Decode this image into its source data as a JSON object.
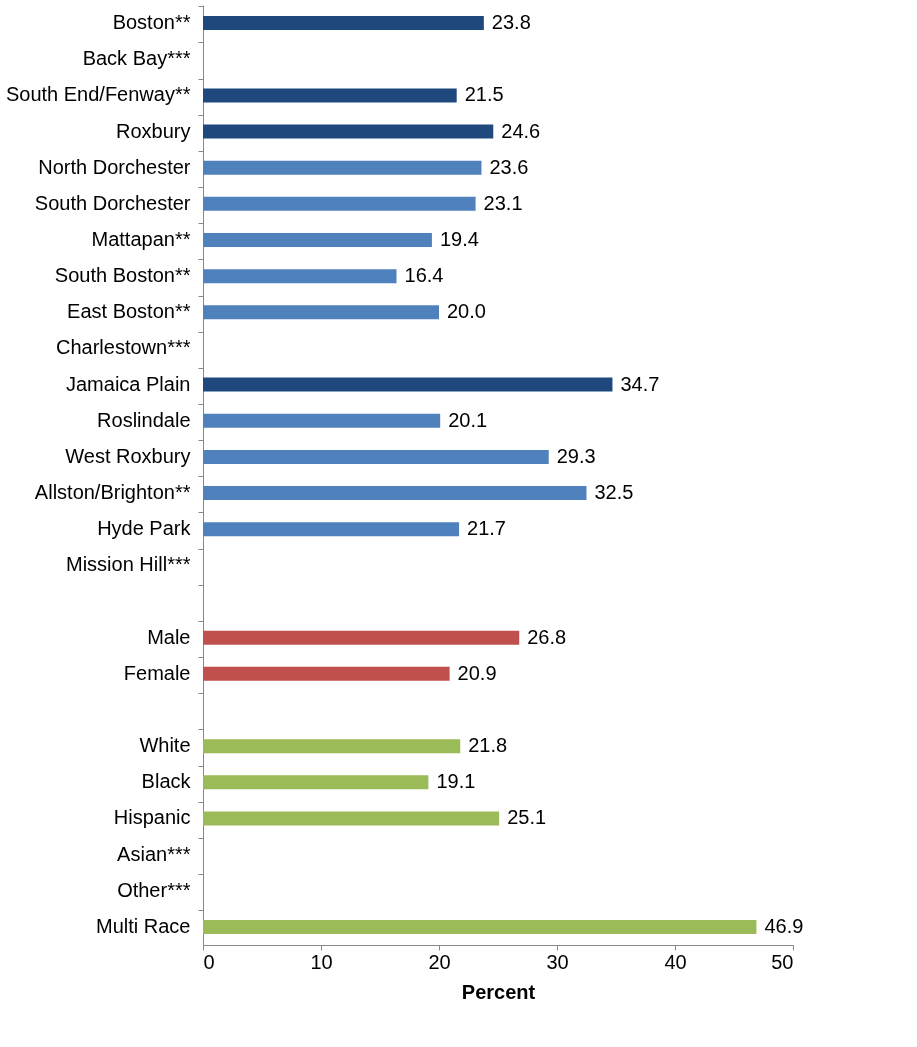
{
  "chart_data": {
    "type": "bar",
    "orientation": "horizontal",
    "xlabel": "Percent",
    "categories": [
      "Boston**",
      "Back Bay***",
      "South End/Fenway**",
      "Roxbury",
      "North Dorchester",
      "South Dorchester",
      "Mattapan**",
      "South Boston**",
      "East Boston**",
      "Charlestown***",
      "Jamaica Plain",
      "Roslindale",
      "West Roxbury",
      "Allston/Brighton**",
      "Hyde Park",
      "Mission Hill***",
      null,
      "Male",
      "Female",
      null,
      "White",
      "Black",
      "Hispanic",
      "Asian***",
      "Other***",
      "Multi Race"
    ],
    "values": [
      23.8,
      null,
      21.5,
      24.6,
      23.6,
      23.1,
      19.4,
      16.4,
      20.0,
      null,
      34.7,
      20.1,
      29.3,
      32.5,
      21.7,
      null,
      null,
      26.8,
      20.9,
      null,
      21.8,
      19.1,
      25.1,
      null,
      null,
      46.9
    ],
    "colors": [
      "#1f497d",
      "#1f497d",
      "#1f497d",
      "#1f497d",
      "#4f81bd",
      "#4f81bd",
      "#4f81bd",
      "#4f81bd",
      "#4f81bd",
      "#4f81bd",
      "#1f497d",
      "#4f81bd",
      "#4f81bd",
      "#4f81bd",
      "#4f81bd",
      "#4f81bd",
      "#c0504d",
      "#c0504d",
      "#c0504d",
      "#9bbb59",
      "#9bbb59",
      "#9bbb59",
      "#9bbb59",
      "#9bbb59",
      "#9bbb59",
      "#9bbb59"
    ],
    "value_labels": [
      "23.8",
      null,
      "21.5",
      "24.6",
      "23.6",
      "23.1",
      "19.4",
      "16.4",
      "20.0",
      null,
      "34.7",
      "20.1",
      "29.3",
      "32.5",
      "21.7",
      null,
      null,
      "26.8",
      "20.9",
      null,
      "21.8",
      "19.1",
      "25.1",
      null,
      null,
      "46.9"
    ],
    "xlim": [
      0,
      50
    ],
    "xticks": [
      0,
      10,
      20,
      30,
      40,
      50
    ],
    "grid": false
  }
}
